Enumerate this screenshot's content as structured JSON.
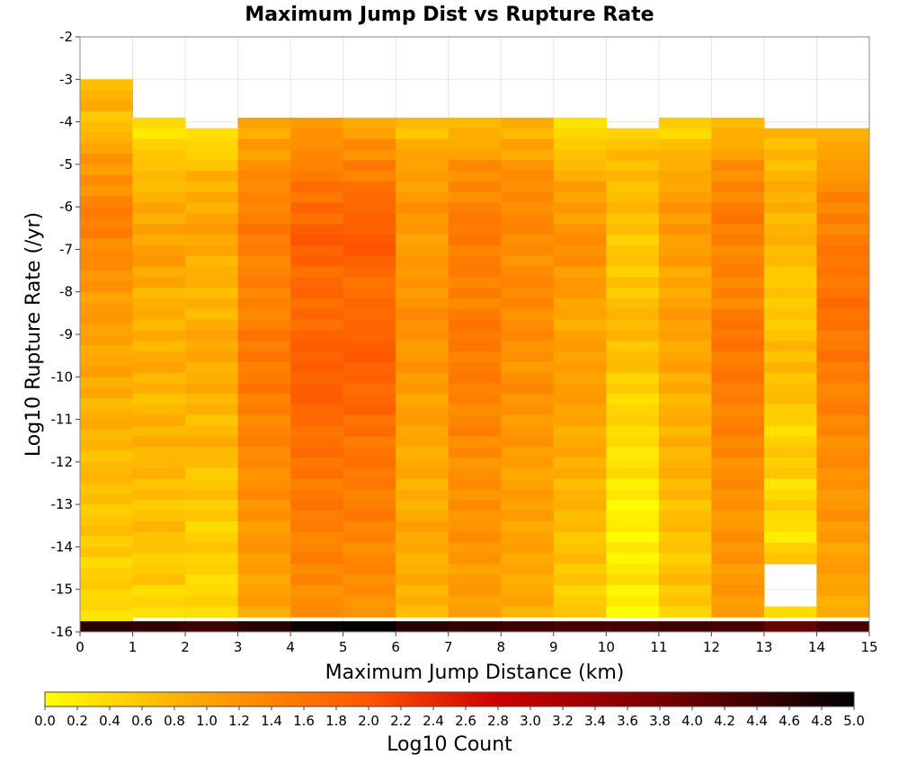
{
  "chart_data": {
    "type": "heatmap",
    "title": "Maximum Jump Dist vs Rupture Rate",
    "xlabel": "Maximum Jump Distance (km)",
    "ylabel": "Log10 Rupture Rate (/yr)",
    "colorbar_label": "Log10 Count",
    "xlim": [
      0,
      15
    ],
    "ylim": [
      -16,
      -2
    ],
    "x_ticks": [
      "0",
      "1",
      "2",
      "3",
      "4",
      "5",
      "6",
      "7",
      "8",
      "9",
      "10",
      "11",
      "12",
      "13",
      "14",
      "15"
    ],
    "y_ticks": [
      "-2",
      "-3",
      "-4",
      "-5",
      "-6",
      "-7",
      "-8",
      "-9",
      "-10",
      "-11",
      "-12",
      "-13",
      "-14",
      "-15",
      "-16"
    ],
    "colorbar_ticks": [
      "0.0",
      "0.2",
      "0.4",
      "0.6",
      "0.8",
      "1.0",
      "1.2",
      "1.4",
      "1.6",
      "1.8",
      "2.0",
      "2.2",
      "2.4",
      "2.6",
      "2.8",
      "3.0",
      "3.2",
      "3.4",
      "3.6",
      "3.8",
      "4.0",
      "4.2",
      "4.4",
      "4.6",
      "4.8",
      "5.0"
    ],
    "colorbar_range": [
      0.0,
      5.0
    ],
    "colormap": [
      {
        "v": 0.0,
        "color": "#ffff00"
      },
      {
        "v": 0.9,
        "color": "#ffaa00"
      },
      {
        "v": 2.0,
        "color": "#ff5500"
      },
      {
        "v": 2.8,
        "color": "#cc0000"
      },
      {
        "v": 4.0,
        "color": "#660000"
      },
      {
        "v": 5.0,
        "color": "#000000"
      }
    ],
    "y_bin_size": 0.25,
    "columns": [
      {
        "x": [
          0,
          1
        ],
        "ymax": -3.0,
        "base": 0.7,
        "shape": [
          0.1,
          -0.05,
          0.25,
          0.4,
          0.55,
          0.7,
          0.75,
          0.65,
          0.5,
          0.4,
          0.35,
          0.3,
          0.25,
          0.2,
          0.15,
          0.1,
          0.05,
          0.0,
          -0.05,
          -0.1,
          -0.15,
          -0.2,
          -0.25,
          -0.3
        ],
        "bottom": 4.6,
        "empty": []
      },
      {
        "x": [
          1,
          2
        ],
        "ymax": -3.9,
        "base": 0.8,
        "shape": [
          -0.45,
          -0.3,
          -0.1,
          0.0,
          0.1,
          0.2,
          0.25,
          0.15,
          0.05,
          0.0,
          0.05,
          0.1,
          0.0,
          -0.05,
          0.0,
          0.05,
          -0.05,
          -0.1,
          -0.15,
          -0.1,
          -0.2,
          -0.25,
          -0.4,
          -0.35
        ],
        "bottom": 4.5,
        "empty": []
      },
      {
        "x": [
          2,
          3
        ],
        "ymax": -4.15,
        "base": 0.8,
        "shape": [
          -0.4,
          -0.2,
          0.0,
          0.1,
          0.2,
          0.15,
          0.05,
          -0.05,
          0.0,
          0.1,
          0.15,
          0.1,
          0.05,
          0.0,
          -0.05,
          0.0,
          -0.15,
          -0.2,
          -0.25,
          -0.3,
          -0.3,
          -0.35,
          -0.4,
          -0.4
        ],
        "bottom": 4.4,
        "empty": []
      },
      {
        "x": [
          3,
          4
        ],
        "ymax": -3.9,
        "base": 1.3,
        "shape": [
          -0.4,
          -0.2,
          -0.05,
          0.05,
          0.15,
          0.2,
          0.15,
          0.1,
          0.1,
          0.15,
          0.2,
          0.25,
          0.2,
          0.15,
          0.1,
          0.05,
          0.0,
          -0.05,
          -0.1,
          -0.15,
          -0.2,
          -0.25,
          -0.3,
          -0.4
        ],
        "bottom": 4.6,
        "empty": []
      },
      {
        "x": [
          4,
          5
        ],
        "ymax": -3.9,
        "base": 1.6,
        "shape": [
          -0.5,
          -0.3,
          -0.1,
          0.0,
          0.15,
          0.3,
          0.25,
          0.15,
          0.1,
          0.15,
          0.2,
          0.25,
          0.3,
          0.2,
          0.1,
          0.05,
          0.0,
          -0.05,
          -0.1,
          -0.15,
          -0.2,
          -0.25,
          -0.3,
          -0.4
        ],
        "bottom": 4.9,
        "empty": []
      },
      {
        "x": [
          5,
          6
        ],
        "ymax": -3.9,
        "base": 1.6,
        "shape": [
          -0.6,
          -0.35,
          -0.1,
          0.05,
          0.2,
          0.35,
          0.3,
          0.1,
          0.05,
          0.15,
          0.3,
          0.25,
          0.2,
          0.15,
          0.05,
          0.0,
          -0.05,
          -0.1,
          -0.15,
          -0.2,
          -0.25,
          -0.3,
          -0.35,
          -0.4
        ],
        "bottom": 5.0,
        "empty": []
      },
      {
        "x": [
          6,
          7
        ],
        "ymax": -3.9,
        "base": 1.1,
        "shape": [
          -0.4,
          -0.2,
          -0.05,
          0.0,
          0.05,
          0.0,
          -0.05,
          0.05,
          0.1,
          0.15,
          0.1,
          0.05,
          0.0,
          -0.05,
          -0.1,
          -0.15,
          -0.2,
          -0.25,
          -0.2,
          -0.15,
          -0.2,
          -0.25,
          -0.3,
          -0.3
        ],
        "bottom": 4.6,
        "empty": []
      },
      {
        "x": [
          7,
          8
        ],
        "ymax": -3.9,
        "base": 1.3,
        "shape": [
          -0.5,
          -0.3,
          -0.05,
          0.05,
          0.15,
          0.25,
          0.2,
          0.1,
          0.15,
          0.2,
          0.25,
          0.2,
          0.15,
          0.1,
          0.05,
          0.0,
          -0.05,
          -0.1,
          -0.05,
          -0.1,
          -0.15,
          -0.2,
          -0.25,
          -0.3
        ],
        "bottom": 4.5,
        "empty": []
      },
      {
        "x": [
          8,
          9
        ],
        "ymax": -3.9,
        "base": 1.2,
        "shape": [
          -0.4,
          -0.2,
          0.0,
          0.1,
          0.15,
          0.1,
          0.05,
          0.1,
          0.15,
          0.1,
          0.05,
          0.0,
          0.05,
          0.0,
          -0.05,
          -0.1,
          -0.15,
          -0.2,
          -0.15,
          -0.2,
          -0.25,
          -0.25,
          -0.3,
          -0.35
        ],
        "bottom": 4.4,
        "empty": []
      },
      {
        "x": [
          9,
          10
        ],
        "ymax": -3.9,
        "base": 1.0,
        "shape": [
          -0.7,
          -0.4,
          -0.15,
          0.0,
          0.1,
          0.2,
          0.25,
          0.15,
          0.0,
          -0.05,
          0.0,
          0.05,
          0.1,
          0.0,
          -0.05,
          -0.1,
          -0.15,
          -0.2,
          -0.25,
          -0.3,
          -0.35,
          -0.4,
          -0.45,
          -0.5
        ],
        "bottom": 4.3,
        "empty": []
      },
      {
        "x": [
          10,
          11
        ],
        "ymax": -4.15,
        "base": 0.7,
        "shape": [
          -0.1,
          0.0,
          0.05,
          0.0,
          -0.05,
          -0.1,
          -0.15,
          -0.05,
          0.0,
          0.05,
          0.0,
          -0.1,
          -0.2,
          -0.25,
          -0.3,
          -0.35,
          -0.4,
          -0.5,
          -0.55,
          -0.6,
          -0.5,
          -0.45,
          -0.55,
          -0.6
        ],
        "bottom": 4.3,
        "empty": []
      },
      {
        "x": [
          11,
          12
        ],
        "ymax": -3.9,
        "base": 0.9,
        "shape": [
          -0.4,
          -0.2,
          0.0,
          0.15,
          0.2,
          0.25,
          0.15,
          0.05,
          0.1,
          0.15,
          0.1,
          0.05,
          0.0,
          -0.05,
          -0.1,
          -0.05,
          -0.1,
          -0.15,
          -0.2,
          -0.25,
          -0.3,
          -0.25,
          -0.3,
          -0.35
        ],
        "bottom": 4.4,
        "empty": []
      },
      {
        "x": [
          12,
          13
        ],
        "ymax": -3.9,
        "base": 1.3,
        "shape": [
          -0.5,
          -0.3,
          -0.05,
          0.1,
          0.2,
          0.15,
          0.1,
          0.05,
          0.1,
          0.2,
          0.3,
          0.25,
          0.2,
          0.15,
          0.1,
          0.05,
          0.0,
          -0.05,
          -0.1,
          -0.15,
          -0.1,
          -0.15,
          -0.2,
          -0.25
        ],
        "bottom": 4.3,
        "empty": []
      },
      {
        "x": [
          13,
          14
        ],
        "ymax": -4.15,
        "base": 0.7,
        "shape": [
          0.0,
          0.05,
          0.1,
          0.15,
          0.1,
          0.05,
          0.0,
          -0.15,
          -0.1,
          -0.05,
          0.0,
          0.05,
          0.0,
          -0.1,
          -0.25,
          -0.2,
          -0.15,
          -0.3,
          -0.25,
          -0.4,
          -0.2,
          -0.35,
          -0.4,
          -0.45
        ],
        "bottom": 4.0,
        "empty": [
          [
            -15.45,
            -14.45
          ],
          [
            -15.8,
            -15.6
          ]
        ]
      },
      {
        "x": [
          14,
          15
        ],
        "ymax": -4.15,
        "base": 1.3,
        "shape": [
          -0.5,
          -0.25,
          -0.05,
          0.05,
          0.15,
          0.2,
          0.25,
          0.3,
          0.35,
          0.3,
          0.25,
          0.2,
          0.15,
          0.1,
          0.05,
          0.0,
          -0.05,
          -0.1,
          -0.15,
          -0.2,
          -0.25,
          -0.3,
          -0.35,
          -0.4
        ],
        "bottom": 4.3,
        "empty": []
      }
    ]
  }
}
